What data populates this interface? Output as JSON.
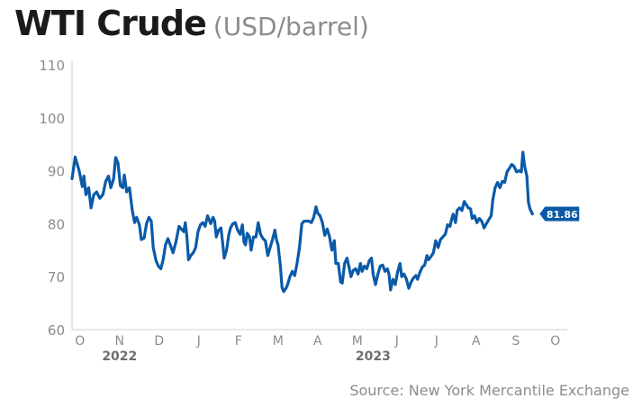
{
  "title": "WTI Crude",
  "subtitle": "(USD/barrel)",
  "source": "Source: New York Mercantile Exchange",
  "colors": {
    "line": "#0a5aa8",
    "axis_text": "#8c8c8c",
    "axis_line": "#d0d0d0",
    "year_text": "#6e6e6e",
    "callout_bg": "#0a5aa8",
    "callout_text": "#ffffff"
  },
  "chart_data": {
    "type": "line",
    "ylim": [
      60,
      110
    ],
    "yticks": [
      60,
      70,
      80,
      90,
      100,
      110
    ],
    "xlim": [
      0,
      12.5
    ],
    "xticks": [
      {
        "label": "O",
        "x": 0.2
      },
      {
        "label": "N",
        "x": 1.2
      },
      {
        "label": "D",
        "x": 2.2
      },
      {
        "label": "J",
        "x": 3.2
      },
      {
        "label": "F",
        "x": 4.2
      },
      {
        "label": "M",
        "x": 5.2
      },
      {
        "label": "A",
        "x": 6.2
      },
      {
        "label": "M",
        "x": 7.2
      },
      {
        "label": "J",
        "x": 8.2
      },
      {
        "label": "J",
        "x": 9.2
      },
      {
        "label": "A",
        "x": 10.2
      },
      {
        "label": "S",
        "x": 11.2
      },
      {
        "label": "O",
        "x": 12.2
      }
    ],
    "year_labels": [
      {
        "label": "2022",
        "x": 1.2
      },
      {
        "label": "2023",
        "x": 7.6
      }
    ],
    "grid": false,
    "last_value_label": "81.86",
    "series": [
      {
        "values": [
          [
            0.0,
            88.5
          ],
          [
            0.08,
            92.6
          ],
          [
            0.18,
            90.0
          ],
          [
            0.26,
            87.0
          ],
          [
            0.3,
            89.0
          ],
          [
            0.35,
            85.5
          ],
          [
            0.42,
            86.8
          ],
          [
            0.48,
            83.0
          ],
          [
            0.55,
            85.5
          ],
          [
            0.62,
            86.0
          ],
          [
            0.7,
            84.8
          ],
          [
            0.78,
            85.5
          ],
          [
            0.85,
            88.0
          ],
          [
            0.92,
            89.0
          ],
          [
            0.98,
            86.8
          ],
          [
            1.05,
            88.5
          ],
          [
            1.1,
            92.5
          ],
          [
            1.16,
            91.5
          ],
          [
            1.22,
            87.2
          ],
          [
            1.28,
            86.8
          ],
          [
            1.32,
            89.2
          ],
          [
            1.38,
            86.0
          ],
          [
            1.45,
            86.8
          ],
          [
            1.52,
            82.5
          ],
          [
            1.58,
            80.2
          ],
          [
            1.63,
            81.2
          ],
          [
            1.7,
            79.8
          ],
          [
            1.75,
            77.0
          ],
          [
            1.82,
            77.3
          ],
          [
            1.88,
            80.0
          ],
          [
            1.94,
            81.2
          ],
          [
            2.0,
            80.5
          ],
          [
            2.05,
            75.5
          ],
          [
            2.12,
            73.0
          ],
          [
            2.18,
            72.0
          ],
          [
            2.24,
            71.5
          ],
          [
            2.3,
            73.2
          ],
          [
            2.36,
            76.0
          ],
          [
            2.42,
            77.2
          ],
          [
            2.48,
            76.0
          ],
          [
            2.55,
            74.5
          ],
          [
            2.62,
            76.5
          ],
          [
            2.7,
            79.5
          ],
          [
            2.76,
            79.0
          ],
          [
            2.82,
            78.5
          ],
          [
            2.86,
            80.2
          ],
          [
            2.9,
            77.5
          ],
          [
            2.94,
            73.2
          ],
          [
            3.0,
            74.0
          ],
          [
            3.06,
            74.5
          ],
          [
            3.12,
            75.5
          ],
          [
            3.18,
            78.5
          ],
          [
            3.24,
            79.8
          ],
          [
            3.3,
            80.2
          ],
          [
            3.36,
            79.5
          ],
          [
            3.42,
            81.5
          ],
          [
            3.5,
            80.0
          ],
          [
            3.56,
            81.2
          ],
          [
            3.6,
            80.5
          ],
          [
            3.64,
            77.5
          ],
          [
            3.7,
            78.8
          ],
          [
            3.76,
            79.2
          ],
          [
            3.8,
            76.5
          ],
          [
            3.84,
            73.5
          ],
          [
            3.9,
            75.0
          ],
          [
            3.96,
            78.0
          ],
          [
            4.0,
            79.2
          ],
          [
            4.06,
            80.0
          ],
          [
            4.12,
            80.2
          ],
          [
            4.18,
            78.8
          ],
          [
            4.24,
            78.0
          ],
          [
            4.3,
            79.8
          ],
          [
            4.34,
            76.5
          ],
          [
            4.38,
            76.0
          ],
          [
            4.42,
            78.2
          ],
          [
            4.48,
            77.5
          ],
          [
            4.52,
            75.0
          ],
          [
            4.58,
            77.5
          ],
          [
            4.64,
            77.5
          ],
          [
            4.7,
            80.2
          ],
          [
            4.76,
            78.0
          ],
          [
            4.82,
            77.2
          ],
          [
            4.88,
            76.8
          ],
          [
            4.94,
            74.0
          ],
          [
            5.0,
            75.5
          ],
          [
            5.06,
            77.0
          ],
          [
            5.12,
            78.8
          ],
          [
            5.16,
            77.0
          ],
          [
            5.2,
            76.0
          ],
          [
            5.26,
            72.0
          ],
          [
            5.3,
            68.0
          ],
          [
            5.34,
            67.2
          ],
          [
            5.4,
            67.8
          ],
          [
            5.44,
            68.5
          ],
          [
            5.5,
            70.0
          ],
          [
            5.56,
            71.0
          ],
          [
            5.62,
            70.2
          ],
          [
            5.68,
            72.5
          ],
          [
            5.74,
            75.5
          ],
          [
            5.8,
            80.0
          ],
          [
            5.86,
            80.5
          ],
          [
            5.92,
            80.5
          ],
          [
            5.98,
            80.5
          ],
          [
            6.04,
            80.2
          ],
          [
            6.1,
            81.2
          ],
          [
            6.16,
            83.2
          ],
          [
            6.2,
            82.0
          ],
          [
            6.26,
            81.5
          ],
          [
            6.32,
            80.2
          ],
          [
            6.38,
            77.8
          ],
          [
            6.44,
            79.0
          ],
          [
            6.5,
            77.5
          ],
          [
            6.56,
            75.0
          ],
          [
            6.62,
            76.8
          ],
          [
            6.66,
            72.5
          ],
          [
            6.72,
            72.5
          ],
          [
            6.78,
            69.0
          ],
          [
            6.82,
            68.8
          ],
          [
            6.88,
            72.5
          ],
          [
            6.94,
            73.5
          ],
          [
            7.0,
            71.5
          ],
          [
            7.04,
            70.0
          ],
          [
            7.1,
            71.2
          ],
          [
            7.16,
            71.5
          ],
          [
            7.22,
            70.5
          ],
          [
            7.28,
            72.5
          ],
          [
            7.32,
            71.0
          ],
          [
            7.38,
            72.0
          ],
          [
            7.44,
            71.5
          ],
          [
            7.5,
            73.0
          ],
          [
            7.56,
            73.5
          ],
          [
            7.6,
            70.5
          ],
          [
            7.66,
            68.5
          ],
          [
            7.72,
            70.5
          ],
          [
            7.78,
            72.0
          ],
          [
            7.84,
            72.2
          ],
          [
            7.9,
            71.0
          ],
          [
            7.96,
            71.5
          ],
          [
            8.0,
            70.5
          ],
          [
            8.04,
            67.5
          ],
          [
            8.1,
            69.5
          ],
          [
            8.16,
            68.5
          ],
          [
            8.22,
            71.0
          ],
          [
            8.28,
            72.5
          ],
          [
            8.32,
            70.0
          ],
          [
            8.38,
            70.5
          ],
          [
            8.44,
            69.5
          ],
          [
            8.5,
            67.8
          ],
          [
            8.56,
            69.0
          ],
          [
            8.62,
            69.8
          ],
          [
            8.68,
            70.2
          ],
          [
            8.72,
            69.5
          ],
          [
            8.78,
            70.8
          ],
          [
            8.84,
            71.8
          ],
          [
            8.9,
            72.2
          ],
          [
            8.96,
            74.0
          ],
          [
            9.0,
            73.2
          ],
          [
            9.06,
            73.8
          ],
          [
            9.12,
            74.5
          ],
          [
            9.18,
            76.8
          ],
          [
            9.24,
            75.5
          ],
          [
            9.3,
            77.0
          ],
          [
            9.36,
            77.5
          ],
          [
            9.42,
            78.0
          ],
          [
            9.48,
            79.8
          ],
          [
            9.54,
            79.5
          ],
          [
            9.58,
            80.8
          ],
          [
            9.62,
            81.8
          ],
          [
            9.68,
            80.2
          ],
          [
            9.72,
            82.5
          ],
          [
            9.78,
            83.0
          ],
          [
            9.84,
            82.5
          ],
          [
            9.9,
            84.2
          ],
          [
            9.96,
            83.5
          ],
          [
            10.0,
            83.0
          ],
          [
            10.06,
            82.8
          ],
          [
            10.1,
            81.0
          ],
          [
            10.16,
            81.5
          ],
          [
            10.22,
            80.2
          ],
          [
            10.28,
            81.0
          ],
          [
            10.34,
            80.5
          ],
          [
            10.4,
            79.2
          ],
          [
            10.46,
            80.0
          ],
          [
            10.52,
            80.8
          ],
          [
            10.58,
            81.5
          ],
          [
            10.62,
            84.5
          ],
          [
            10.68,
            86.8
          ],
          [
            10.74,
            87.8
          ],
          [
            10.8,
            86.8
          ],
          [
            10.86,
            88.0
          ],
          [
            10.92,
            87.8
          ],
          [
            10.98,
            89.8
          ],
          [
            11.04,
            90.5
          ],
          [
            11.1,
            91.2
          ],
          [
            11.16,
            90.8
          ],
          [
            11.22,
            89.8
          ],
          [
            11.28,
            90.0
          ],
          [
            11.34,
            89.8
          ],
          [
            11.38,
            93.5
          ],
          [
            11.42,
            91.0
          ],
          [
            11.48,
            89.0
          ],
          [
            11.52,
            84.0
          ],
          [
            11.56,
            82.8
          ],
          [
            11.62,
            81.86
          ]
        ]
      }
    ]
  }
}
